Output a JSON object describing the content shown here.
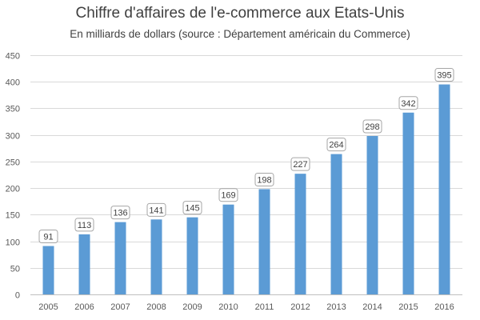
{
  "chart_data": {
    "type": "bar",
    "title": "Chiffre d'affaires de l'e-commerce aux Etats-Unis",
    "subtitle": "En milliards de dollars (source : Département américain du Commerce)",
    "xlabel": "",
    "ylabel": "",
    "categories": [
      "2005",
      "2006",
      "2007",
      "2008",
      "2009",
      "2010",
      "2011",
      "2012",
      "2013",
      "2014",
      "2015",
      "2016"
    ],
    "values": [
      91,
      113,
      136,
      141,
      145,
      169,
      198,
      227,
      264,
      298,
      342,
      395
    ],
    "ylim": [
      0,
      450
    ],
    "yticks": [
      0,
      50,
      100,
      150,
      200,
      250,
      300,
      350,
      400,
      450
    ],
    "grid": true,
    "legend": "none",
    "bar_color": "#5B9BD5",
    "grid_color": "#D9D9D9",
    "data_labels": true
  }
}
